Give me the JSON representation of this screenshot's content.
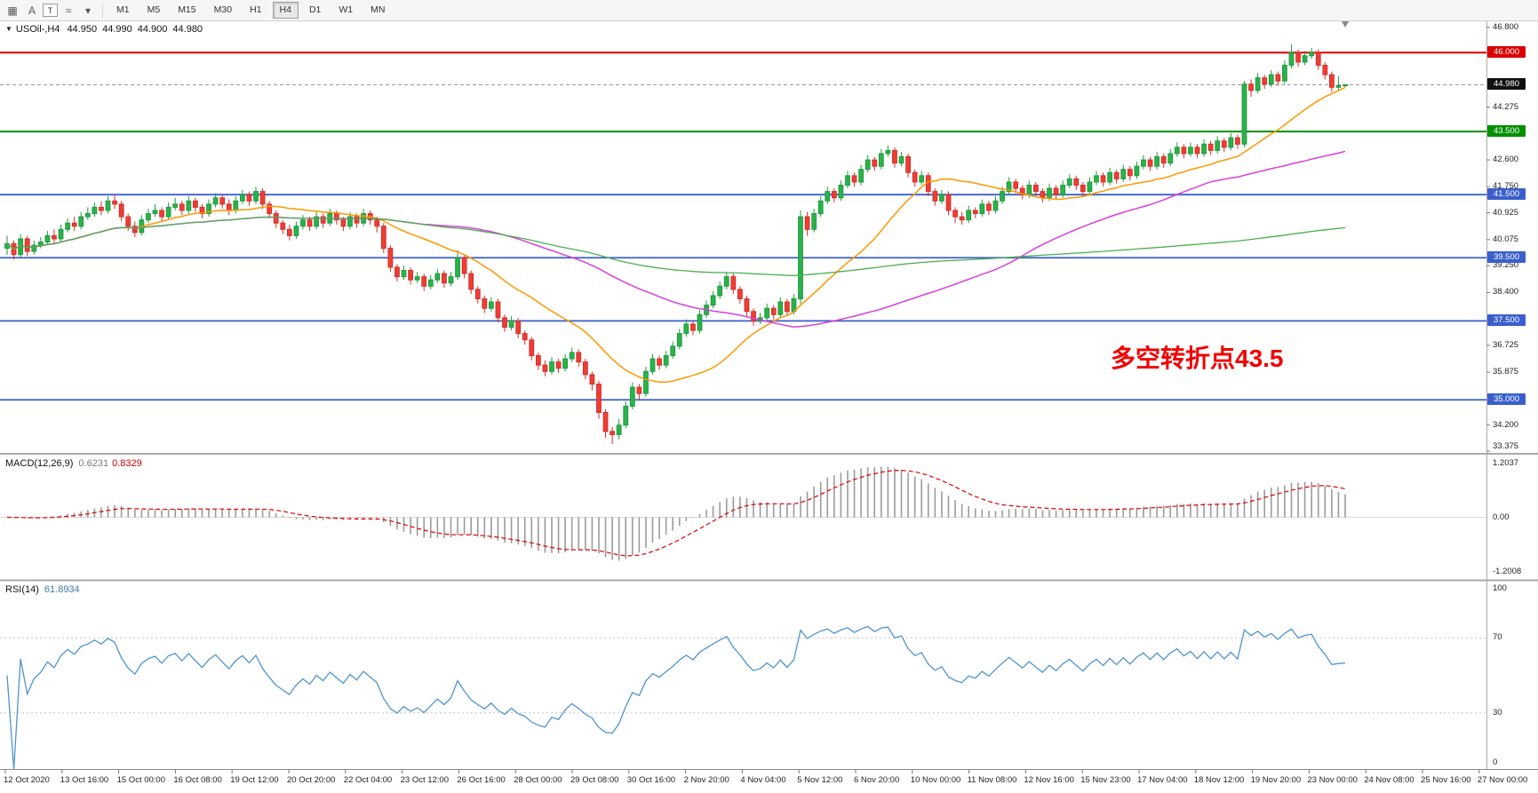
{
  "toolbar": {
    "tools": [
      {
        "glyph": "▦",
        "name": "chart-grid-icon"
      },
      {
        "glyph": "A",
        "name": "arrow-tool-icon"
      },
      {
        "glyph": "T",
        "name": "text-label-tool-icon",
        "boxed": true
      },
      {
        "glyph": "≈",
        "name": "indicator-lines-icon"
      },
      {
        "glyph": "▾",
        "name": "tools-dropdown-icon"
      }
    ],
    "timeframes": [
      "M1",
      "M5",
      "M15",
      "M30",
      "H1",
      "H4",
      "D1",
      "W1",
      "MN"
    ],
    "active_timeframe": "H4"
  },
  "chart": {
    "header": {
      "collapse_icon": "▼",
      "symbol": "USOil-,H4",
      "open": "44.950",
      "high": "44.990",
      "low": "44.900",
      "close": "44.980"
    },
    "annotation": {
      "text": "多空转折点43.5",
      "color": "#f20000"
    },
    "current_price": {
      "value": 44.98,
      "label": "44.980",
      "badge_color": "#101010"
    },
    "levels": [
      {
        "value": 46.0,
        "label": "46.000",
        "color": "#dc0000",
        "width": 2
      },
      {
        "value": 43.5,
        "label": "43.500",
        "color": "#009000",
        "width": 2
      },
      {
        "value": 41.5,
        "label": "41.500",
        "color": "#3a5fcd",
        "width": 1.8
      },
      {
        "value": 39.5,
        "label": "39.500",
        "color": "#3a5fcd",
        "width": 1.8
      },
      {
        "value": 37.5,
        "label": "37.500",
        "color": "#3a5fcd",
        "width": 1.8
      },
      {
        "value": 35.0,
        "label": "35.000",
        "color": "#3a5fcd",
        "width": 1.8
      }
    ],
    "y_axis_labels": [
      {
        "value": 46.8,
        "text": "46.800"
      },
      {
        "value": 44.275,
        "text": "44.275"
      },
      {
        "value": 42.6,
        "text": "42.600"
      },
      {
        "value": 41.75,
        "text": "41.750"
      },
      {
        "value": 40.925,
        "text": "40.925"
      },
      {
        "value": 40.075,
        "text": "40.075"
      },
      {
        "value": 39.25,
        "text": "39.250"
      },
      {
        "value": 38.4,
        "text": "38.400"
      },
      {
        "value": 36.725,
        "text": "36.725"
      },
      {
        "value": 35.875,
        "text": "35.875"
      },
      {
        "value": 34.2,
        "text": "34.200"
      },
      {
        "value": 33.375,
        "text": "33.375"
      }
    ]
  },
  "chart_data": {
    "type": "candlestick",
    "title": "USOil-,H4",
    "symbol": "USOil-",
    "timeframe": "H4",
    "ylim": [
      33.32,
      46.99
    ],
    "colors": {
      "up": "#2bb24c",
      "down": "#ef3e36",
      "up_border": "#1e9b3e",
      "down_border": "#d22f28"
    },
    "moving_averages": [
      {
        "window": 20,
        "color": "#ff9800",
        "width": 1.5
      },
      {
        "window": 62,
        "color": "#d840d8",
        "width": 1.5
      },
      {
        "window": 200,
        "color": "#4caf50",
        "width": 1.3
      }
    ],
    "candles": [
      [
        39.8,
        40.2,
        39.6,
        39.95
      ],
      [
        39.95,
        40.05,
        39.45,
        39.6
      ],
      [
        39.6,
        40.25,
        39.5,
        40.1
      ],
      [
        40.1,
        40.2,
        39.55,
        39.7
      ],
      [
        39.7,
        40.05,
        39.6,
        39.9
      ],
      [
        39.9,
        40.15,
        39.8,
        40.0
      ],
      [
        40.0,
        40.35,
        39.9,
        40.2
      ],
      [
        40.2,
        40.4,
        39.95,
        40.1
      ],
      [
        40.1,
        40.55,
        40.0,
        40.4
      ],
      [
        40.4,
        40.75,
        40.3,
        40.6
      ],
      [
        40.6,
        40.8,
        40.35,
        40.5
      ],
      [
        40.5,
        40.95,
        40.4,
        40.8
      ],
      [
        40.8,
        41.1,
        40.7,
        40.9
      ],
      [
        40.9,
        41.25,
        40.8,
        41.1
      ],
      [
        41.1,
        41.3,
        40.85,
        41.0
      ],
      [
        41.0,
        41.45,
        40.9,
        41.3
      ],
      [
        41.3,
        41.5,
        41.05,
        41.2
      ],
      [
        41.2,
        41.3,
        40.65,
        40.8
      ],
      [
        40.8,
        40.9,
        40.35,
        40.5
      ],
      [
        40.5,
        40.65,
        40.15,
        40.3
      ],
      [
        40.3,
        40.85,
        40.2,
        40.7
      ],
      [
        40.7,
        41.05,
        40.6,
        40.9
      ],
      [
        40.9,
        41.2,
        40.8,
        41.0
      ],
      [
        41.0,
        41.1,
        40.65,
        40.8
      ],
      [
        40.8,
        41.25,
        40.7,
        41.1
      ],
      [
        41.1,
        41.4,
        41.0,
        41.2
      ],
      [
        41.2,
        41.3,
        40.85,
        41.0
      ],
      [
        41.0,
        41.45,
        40.9,
        41.3
      ],
      [
        41.3,
        41.4,
        40.95,
        41.1
      ],
      [
        41.1,
        41.2,
        40.75,
        40.9
      ],
      [
        40.9,
        41.35,
        40.8,
        41.2
      ],
      [
        41.2,
        41.55,
        41.1,
        41.4
      ],
      [
        41.4,
        41.5,
        41.05,
        41.2
      ],
      [
        41.2,
        41.35,
        40.85,
        41.0
      ],
      [
        41.0,
        41.45,
        40.9,
        41.3
      ],
      [
        41.3,
        41.65,
        41.2,
        41.5
      ],
      [
        41.5,
        41.6,
        41.15,
        41.3
      ],
      [
        41.3,
        41.75,
        41.2,
        41.6
      ],
      [
        41.6,
        41.7,
        41.05,
        41.2
      ],
      [
        41.2,
        41.3,
        40.75,
        40.9
      ],
      [
        40.9,
        41.0,
        40.45,
        40.6
      ],
      [
        40.6,
        40.7,
        40.25,
        40.4
      ],
      [
        40.4,
        40.55,
        40.05,
        40.2
      ],
      [
        40.2,
        40.65,
        40.1,
        40.5
      ],
      [
        40.5,
        40.85,
        40.4,
        40.7
      ],
      [
        40.7,
        40.8,
        40.35,
        40.5
      ],
      [
        40.5,
        40.95,
        40.4,
        40.8
      ],
      [
        40.8,
        40.9,
        40.45,
        40.6
      ],
      [
        40.6,
        41.05,
        40.5,
        40.9
      ],
      [
        40.9,
        41.0,
        40.55,
        40.7
      ],
      [
        40.7,
        40.8,
        40.35,
        40.5
      ],
      [
        40.5,
        40.95,
        40.4,
        40.8
      ],
      [
        40.8,
        40.9,
        40.45,
        40.6
      ],
      [
        40.6,
        41.05,
        40.5,
        40.9
      ],
      [
        40.9,
        41.0,
        40.55,
        40.7
      ],
      [
        40.7,
        40.8,
        40.3,
        40.5
      ],
      [
        40.5,
        40.6,
        39.65,
        39.8
      ],
      [
        39.8,
        39.9,
        39.05,
        39.2
      ],
      [
        39.2,
        39.3,
        38.75,
        38.9
      ],
      [
        38.9,
        39.25,
        38.8,
        39.1
      ],
      [
        39.1,
        39.2,
        38.65,
        38.8
      ],
      [
        38.8,
        39.05,
        38.7,
        38.9
      ],
      [
        38.9,
        39.0,
        38.45,
        38.6
      ],
      [
        38.6,
        38.95,
        38.5,
        38.8
      ],
      [
        38.8,
        39.15,
        38.7,
        39.0
      ],
      [
        39.0,
        39.1,
        38.55,
        38.7
      ],
      [
        38.7,
        39.05,
        38.6,
        38.9
      ],
      [
        38.9,
        39.75,
        38.8,
        39.5
      ],
      [
        39.5,
        39.6,
        38.85,
        39.0
      ],
      [
        39.0,
        39.1,
        38.35,
        38.5
      ],
      [
        38.5,
        38.6,
        38.05,
        38.2
      ],
      [
        38.2,
        38.3,
        37.75,
        37.9
      ],
      [
        37.9,
        38.25,
        37.8,
        38.1
      ],
      [
        38.1,
        38.2,
        37.45,
        37.6
      ],
      [
        37.6,
        37.7,
        37.15,
        37.3
      ],
      [
        37.3,
        37.65,
        37.2,
        37.5
      ],
      [
        37.5,
        37.6,
        36.95,
        37.1
      ],
      [
        37.1,
        37.2,
        36.75,
        36.9
      ],
      [
        36.9,
        37.0,
        36.25,
        36.4
      ],
      [
        36.4,
        36.5,
        35.95,
        36.1
      ],
      [
        36.1,
        36.25,
        35.75,
        35.9
      ],
      [
        35.9,
        36.35,
        35.8,
        36.2
      ],
      [
        36.2,
        36.3,
        35.85,
        36.0
      ],
      [
        36.0,
        36.45,
        35.9,
        36.3
      ],
      [
        36.3,
        36.65,
        36.2,
        36.5
      ],
      [
        36.5,
        36.6,
        36.05,
        36.2
      ],
      [
        36.2,
        36.3,
        35.65,
        35.8
      ],
      [
        35.8,
        35.9,
        35.3,
        35.5
      ],
      [
        35.5,
        35.6,
        34.4,
        34.6
      ],
      [
        34.6,
        34.7,
        33.8,
        34.0
      ],
      [
        34.0,
        34.15,
        33.6,
        33.9
      ],
      [
        33.9,
        34.4,
        33.75,
        34.2
      ],
      [
        34.2,
        34.95,
        34.1,
        34.8
      ],
      [
        34.8,
        35.55,
        34.7,
        35.4
      ],
      [
        35.4,
        35.5,
        35.0,
        35.2
      ],
      [
        35.2,
        36.05,
        35.1,
        35.9
      ],
      [
        35.9,
        36.45,
        35.8,
        36.3
      ],
      [
        36.3,
        36.4,
        35.95,
        36.1
      ],
      [
        36.1,
        36.55,
        36.0,
        36.4
      ],
      [
        36.4,
        36.85,
        36.3,
        36.7
      ],
      [
        36.7,
        37.25,
        36.6,
        37.1
      ],
      [
        37.1,
        37.55,
        37.0,
        37.4
      ],
      [
        37.4,
        37.5,
        37.05,
        37.2
      ],
      [
        37.2,
        37.85,
        37.1,
        37.7
      ],
      [
        37.7,
        38.15,
        37.6,
        38.0
      ],
      [
        38.0,
        38.45,
        37.9,
        38.3
      ],
      [
        38.3,
        38.75,
        38.2,
        38.6
      ],
      [
        38.6,
        39.05,
        38.5,
        38.9
      ],
      [
        38.9,
        39.0,
        38.35,
        38.5
      ],
      [
        38.5,
        38.6,
        38.05,
        38.2
      ],
      [
        38.2,
        38.3,
        37.65,
        37.8
      ],
      [
        37.8,
        37.9,
        37.35,
        37.5
      ],
      [
        37.5,
        37.75,
        37.4,
        37.6
      ],
      [
        37.6,
        38.05,
        37.5,
        37.9
      ],
      [
        37.9,
        38.0,
        37.55,
        37.7
      ],
      [
        37.7,
        38.25,
        37.6,
        38.1
      ],
      [
        38.1,
        38.2,
        37.65,
        37.8
      ],
      [
        37.8,
        38.35,
        37.7,
        38.2
      ],
      [
        38.2,
        41.0,
        38.05,
        40.8
      ],
      [
        40.8,
        40.95,
        40.2,
        40.4
      ],
      [
        40.4,
        41.05,
        40.3,
        40.9
      ],
      [
        40.9,
        41.45,
        40.8,
        41.3
      ],
      [
        41.3,
        41.75,
        41.2,
        41.6
      ],
      [
        41.6,
        41.7,
        41.25,
        41.4
      ],
      [
        41.4,
        41.95,
        41.3,
        41.8
      ],
      [
        41.8,
        42.25,
        41.7,
        42.1
      ],
      [
        42.1,
        42.2,
        41.75,
        41.9
      ],
      [
        41.9,
        42.45,
        41.8,
        42.3
      ],
      [
        42.3,
        42.75,
        42.2,
        42.6
      ],
      [
        42.6,
        42.7,
        42.25,
        42.4
      ],
      [
        42.4,
        42.95,
        42.3,
        42.8
      ],
      [
        42.8,
        43.06,
        42.7,
        42.9
      ],
      [
        42.9,
        43.0,
        42.35,
        42.5
      ],
      [
        42.5,
        42.85,
        42.4,
        42.7
      ],
      [
        42.7,
        42.8,
        42.05,
        42.2
      ],
      [
        42.2,
        42.3,
        41.75,
        41.9
      ],
      [
        41.9,
        42.25,
        41.8,
        42.1
      ],
      [
        42.1,
        42.2,
        41.45,
        41.6
      ],
      [
        41.6,
        41.7,
        41.15,
        41.3
      ],
      [
        41.3,
        41.65,
        41.2,
        41.5
      ],
      [
        41.5,
        41.6,
        40.85,
        41.0
      ],
      [
        41.0,
        41.1,
        40.6,
        40.8
      ],
      [
        40.8,
        40.95,
        40.55,
        40.7
      ],
      [
        40.7,
        41.15,
        40.6,
        41.0
      ],
      [
        41.0,
        41.1,
        40.75,
        40.9
      ],
      [
        40.9,
        41.35,
        40.8,
        41.2
      ],
      [
        41.2,
        41.3,
        40.85,
        41.0
      ],
      [
        41.0,
        41.45,
        40.9,
        41.3
      ],
      [
        41.3,
        41.75,
        41.2,
        41.6
      ],
      [
        41.6,
        42.05,
        41.5,
        41.9
      ],
      [
        41.9,
        42.0,
        41.55,
        41.7
      ],
      [
        41.7,
        41.8,
        41.35,
        41.5
      ],
      [
        41.5,
        41.95,
        41.4,
        41.8
      ],
      [
        41.8,
        41.9,
        41.45,
        41.6
      ],
      [
        41.6,
        41.7,
        41.25,
        41.4
      ],
      [
        41.4,
        41.85,
        41.3,
        41.7
      ],
      [
        41.7,
        41.8,
        41.35,
        41.5
      ],
      [
        41.5,
        41.95,
        41.4,
        41.8
      ],
      [
        41.8,
        42.15,
        41.7,
        42.0
      ],
      [
        42.0,
        42.1,
        41.65,
        41.8
      ],
      [
        41.8,
        41.9,
        41.45,
        41.6
      ],
      [
        41.6,
        42.05,
        41.5,
        41.9
      ],
      [
        41.9,
        42.25,
        41.8,
        42.1
      ],
      [
        42.1,
        42.2,
        41.75,
        41.9
      ],
      [
        41.9,
        42.35,
        41.8,
        42.2
      ],
      [
        42.2,
        42.3,
        41.85,
        42.0
      ],
      [
        42.0,
        42.45,
        41.9,
        42.3
      ],
      [
        42.3,
        42.4,
        41.95,
        42.1
      ],
      [
        42.1,
        42.55,
        42.0,
        42.4
      ],
      [
        42.4,
        42.75,
        42.3,
        42.6
      ],
      [
        42.6,
        42.7,
        42.25,
        42.4
      ],
      [
        42.4,
        42.85,
        42.3,
        42.7
      ],
      [
        42.7,
        42.8,
        42.35,
        42.5
      ],
      [
        42.5,
        42.95,
        42.4,
        42.8
      ],
      [
        42.8,
        43.15,
        42.7,
        43.0
      ],
      [
        43.0,
        43.1,
        42.65,
        42.8
      ],
      [
        42.8,
        43.15,
        42.7,
        43.0
      ],
      [
        43.0,
        43.1,
        42.65,
        42.8
      ],
      [
        42.8,
        43.25,
        42.7,
        43.1
      ],
      [
        43.1,
        43.2,
        42.75,
        42.9
      ],
      [
        42.9,
        43.35,
        42.8,
        43.2
      ],
      [
        43.2,
        43.3,
        42.85,
        43.0
      ],
      [
        43.0,
        43.45,
        42.9,
        43.3
      ],
      [
        43.3,
        43.4,
        42.95,
        43.1
      ],
      [
        43.1,
        45.1,
        43.0,
        45.0
      ],
      [
        45.0,
        45.15,
        44.6,
        44.8
      ],
      [
        44.8,
        45.35,
        44.7,
        45.2
      ],
      [
        45.2,
        45.3,
        44.85,
        45.0
      ],
      [
        45.0,
        45.45,
        44.9,
        45.3
      ],
      [
        45.3,
        45.4,
        44.95,
        45.1
      ],
      [
        45.1,
        45.75,
        45.0,
        45.6
      ],
      [
        45.6,
        46.26,
        45.5,
        46.0
      ],
      [
        46.0,
        46.1,
        45.55,
        45.7
      ],
      [
        45.7,
        46.05,
        45.6,
        45.9
      ],
      [
        45.9,
        46.15,
        45.8,
        46.0
      ],
      [
        46.0,
        46.1,
        45.45,
        45.6
      ],
      [
        45.6,
        45.7,
        45.15,
        45.3
      ],
      [
        45.3,
        45.4,
        44.75,
        44.9
      ],
      [
        44.9,
        45.25,
        44.8,
        44.95
      ],
      [
        44.95,
        44.99,
        44.9,
        44.98
      ]
    ],
    "x_labels": [
      "12 Oct 2020",
      "13 Oct 16:00",
      "15 Oct 00:00",
      "16 Oct 08:00",
      "19 Oct 12:00",
      "20 Oct 20:00",
      "22 Oct 04:00",
      "23 Oct 12:00",
      "26 Oct 16:00",
      "28 Oct 00:00",
      "29 Oct 08:00",
      "30 Oct 16:00",
      "2 Nov 20:00",
      "4 Nov 04:00",
      "5 Nov 12:00",
      "6 Nov 20:00",
      "10 Nov 00:00",
      "11 Nov 08:00",
      "12 Nov 16:00",
      "15 Nov 23:00",
      "17 Nov 04:00",
      "18 Nov 12:00",
      "19 Nov 20:00",
      "23 Nov 00:00",
      "24 Nov 08:00",
      "25 Nov 16:00",
      "27 Nov 00:00"
    ],
    "indicators": {
      "macd": {
        "label": "MACD(12,26,9)",
        "fast": 12,
        "slow": 26,
        "signal": 9,
        "value_main": "0.6231",
        "value_signal": "0.8329",
        "axis_labels": [
          "1.2037",
          "0.00",
          "-1.2008"
        ],
        "histogram_color": "#9b9b9b",
        "signal_color": "#e00000"
      },
      "rsi": {
        "label": "RSI(14)",
        "period": 14,
        "value": "61.8934",
        "axis_labels": [
          {
            "value": 100,
            "text": "100"
          },
          {
            "value": 70,
            "text": "70"
          },
          {
            "value": 30,
            "text": "30"
          },
          {
            "value": 0,
            "text": "0"
          }
        ],
        "levels": [
          70,
          30
        ],
        "line_color": "#4f94cd"
      }
    }
  }
}
